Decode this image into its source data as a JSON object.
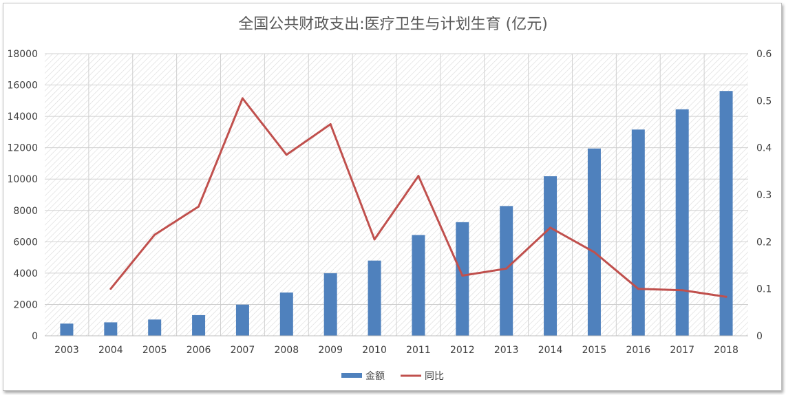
{
  "chart_data": {
    "type": "bar",
    "title": "全国公共财政支出:医疗卫生与计划生育 (亿元)",
    "categories": [
      "2003",
      "2004",
      "2005",
      "2006",
      "2007",
      "2008",
      "2009",
      "2010",
      "2011",
      "2012",
      "2013",
      "2014",
      "2015",
      "2016",
      "2017",
      "2018"
    ],
    "series": [
      {
        "name": "金额",
        "type": "bar",
        "axis": "left",
        "color": "#4f81bd",
        "values": [
          780,
          860,
          1040,
          1320,
          1990,
          2760,
          3990,
          4800,
          6430,
          7250,
          8280,
          10180,
          11950,
          13160,
          14450,
          15620
        ]
      },
      {
        "name": "同比",
        "type": "line",
        "axis": "right",
        "color": "#c0504d",
        "values": [
          null,
          0.1,
          0.215,
          0.275,
          0.505,
          0.385,
          0.45,
          0.205,
          0.34,
          0.128,
          0.143,
          0.23,
          0.178,
          0.1,
          0.097,
          0.083
        ]
      }
    ],
    "y_left": {
      "min": 0,
      "max": 18000,
      "ticks": [
        "0",
        "2000",
        "4000",
        "6000",
        "8000",
        "10000",
        "12000",
        "14000",
        "16000",
        "18000"
      ]
    },
    "y_right": {
      "min": 0,
      "max": 0.6,
      "ticks": [
        "0",
        "0.1",
        "0.2",
        "0.3",
        "0.4",
        "0.5",
        "0.6"
      ]
    },
    "grid": true,
    "legend": "bottom"
  }
}
